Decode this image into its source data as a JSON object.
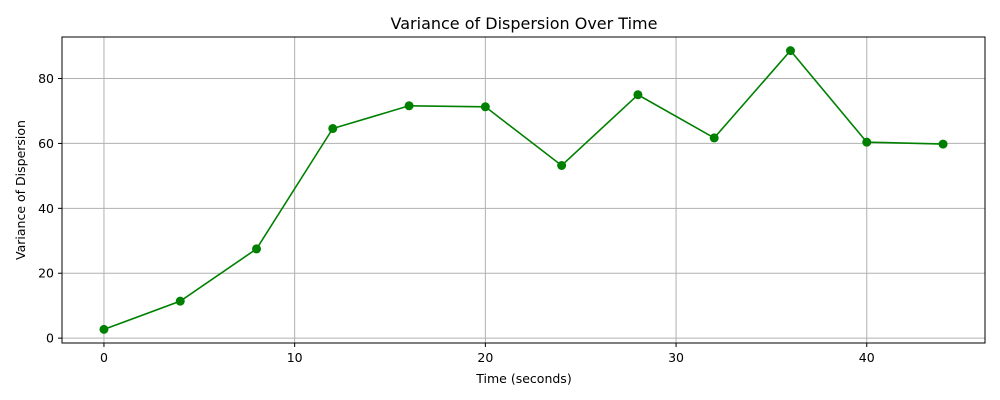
{
  "chart_data": {
    "type": "line",
    "title": "Variance of Dispersion Over Time",
    "xlabel": "Time (seconds)",
    "ylabel": "Variance of Dispersion",
    "xlim": [
      -2.2,
      46.2
    ],
    "ylim": [
      -1.5,
      92.8
    ],
    "xticks": [
      0,
      10,
      20,
      30,
      40
    ],
    "yticks": [
      0,
      20,
      40,
      60,
      80
    ],
    "grid": true,
    "line_color": "#008000",
    "series": [
      {
        "x": [
          0,
          4,
          8,
          12,
          16,
          20,
          24,
          28,
          32,
          36,
          40,
          44
        ],
        "values": [
          2.7,
          11.4,
          27.5,
          64.6,
          71.6,
          71.3,
          53.2,
          75.0,
          61.7,
          88.6,
          60.4,
          59.8
        ]
      }
    ]
  }
}
